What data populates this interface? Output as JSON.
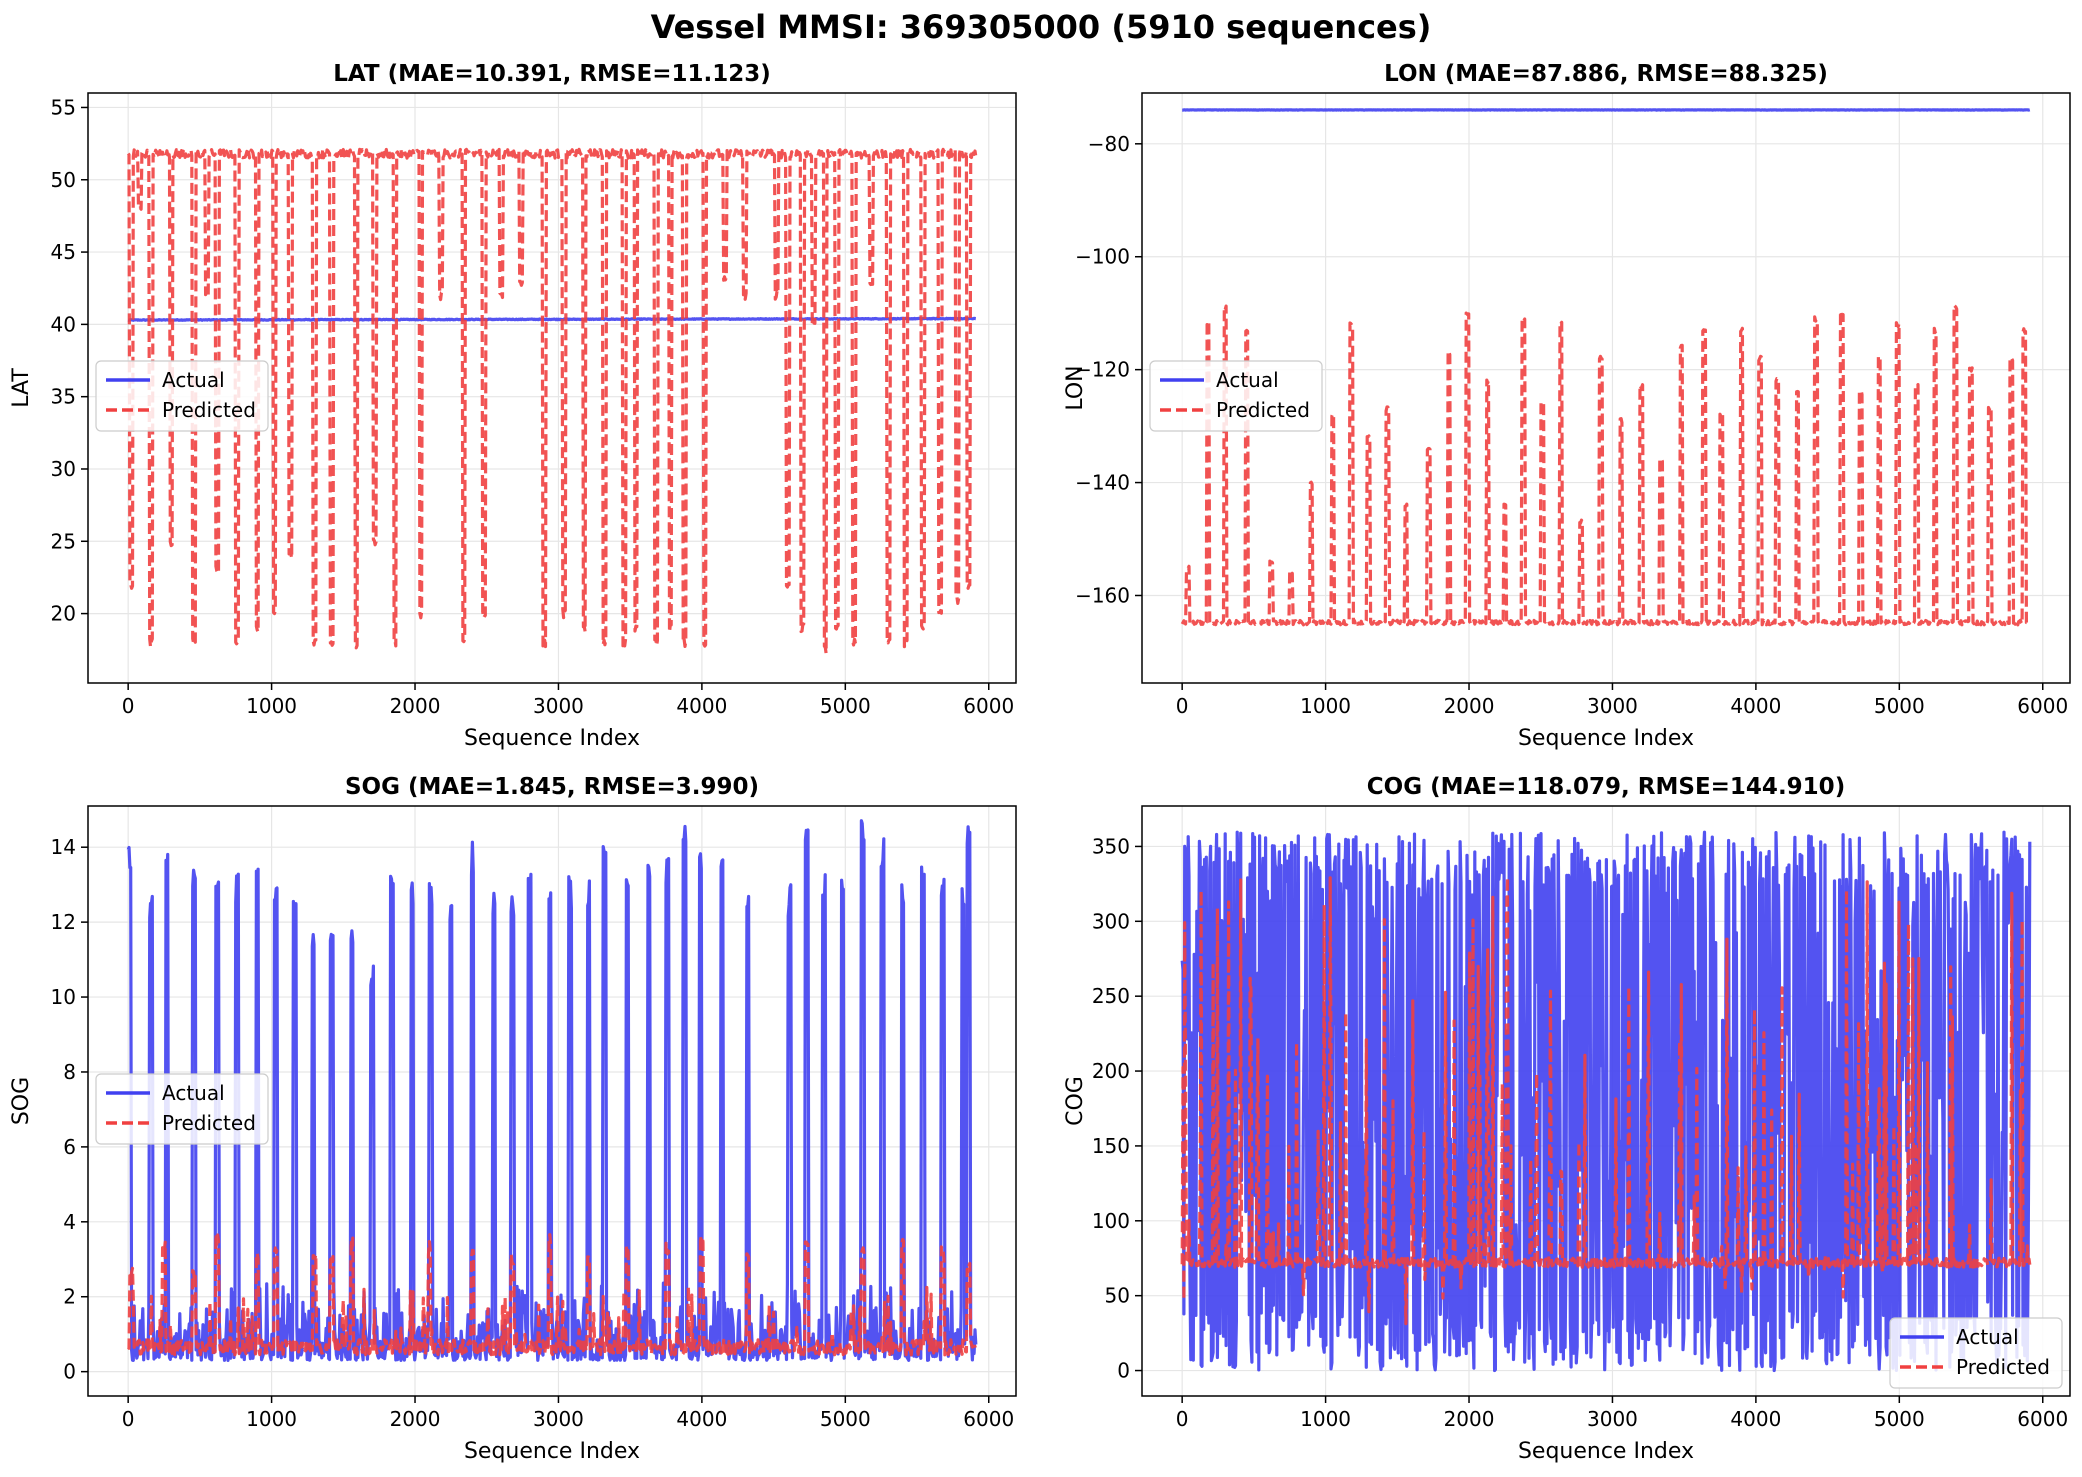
{
  "figure": {
    "suptitle": "Vessel MMSI: 369305000 (5910 sequences)"
  },
  "colors": {
    "actual": "#4040f0",
    "predicted": "#f04040",
    "grid": "#e6e6e6",
    "axis": "#000000"
  },
  "chart_data": [
    {
      "type": "line",
      "title": "LAT (MAE=10.391, RMSE=11.123)",
      "xlabel": "Sequence Index",
      "ylabel": "LAT",
      "xlim": [
        -280,
        6190
      ],
      "ylim": [
        15.2,
        56.0
      ],
      "xticks": [
        0,
        1000,
        2000,
        3000,
        4000,
        5000,
        6000
      ],
      "yticks": [
        20,
        25,
        30,
        35,
        40,
        45,
        50,
        55
      ],
      "legend": {
        "position": "center-left",
        "entries": [
          "Actual",
          "Predicted"
        ]
      },
      "grid": true,
      "series": [
        {
          "name": "Actual",
          "style": "solid",
          "base": 40.3,
          "drift": 0.1,
          "noise": 0.05,
          "peaks": []
        },
        {
          "name": "Predicted",
          "style": "dashed",
          "base": 51.8,
          "noise": 0.6,
          "dips": [
            [
              20,
              22
            ],
            [
              80,
              48
            ],
            [
              160,
              18
            ],
            [
              300,
              25
            ],
            [
              460,
              18
            ],
            [
              550,
              42
            ],
            [
              620,
              23
            ],
            [
              760,
              18
            ],
            [
              900,
              19
            ],
            [
              1020,
              20
            ],
            [
              1130,
              24
            ],
            [
              1300,
              18
            ],
            [
              1420,
              18
            ],
            [
              1590,
              17.5
            ],
            [
              1720,
              25
            ],
            [
              1860,
              18
            ],
            [
              2040,
              20
            ],
            [
              2180,
              42
            ],
            [
              2340,
              18
            ],
            [
              2480,
              20
            ],
            [
              2600,
              42
            ],
            [
              2740,
              43
            ],
            [
              2900,
              18
            ],
            [
              3040,
              20
            ],
            [
              3180,
              19
            ],
            [
              3320,
              18
            ],
            [
              3460,
              18
            ],
            [
              3540,
              19
            ],
            [
              3680,
              18
            ],
            [
              3780,
              19
            ],
            [
              3880,
              18
            ],
            [
              4020,
              18
            ],
            [
              4160,
              43
            ],
            [
              4300,
              42
            ],
            [
              4520,
              42
            ],
            [
              4600,
              22
            ],
            [
              4700,
              19
            ],
            [
              4780,
              40
            ],
            [
              4860,
              17.5
            ],
            [
              4940,
              19
            ],
            [
              5060,
              18
            ],
            [
              5180,
              43
            ],
            [
              5300,
              18
            ],
            [
              5420,
              18
            ],
            [
              5540,
              19
            ],
            [
              5660,
              20
            ],
            [
              5780,
              21
            ],
            [
              5860,
              22
            ]
          ]
        }
      ]
    },
    {
      "type": "line",
      "title": "LON (MAE=87.886, RMSE=88.325)",
      "xlabel": "Sequence Index",
      "ylabel": "LON",
      "xlim": [
        -280,
        6190
      ],
      "ylim": [
        -175.5,
        -71.0
      ],
      "xticks": [
        0,
        1000,
        2000,
        3000,
        4000,
        5000,
        6000
      ],
      "yticks": [
        -160,
        -140,
        -120,
        -100,
        -80
      ],
      "legend": {
        "position": "center-left",
        "entries": [
          "Actual",
          "Predicted"
        ]
      },
      "grid": true,
      "series": [
        {
          "name": "Actual",
          "style": "solid",
          "base": -74.0,
          "drift": 0.0,
          "noise": 0.05,
          "peaks": []
        },
        {
          "name": "Predicted",
          "style": "dashed",
          "base": -164.8,
          "noise": 0.8,
          "spikes": [
            [
              40,
              -155
            ],
            [
              180,
              -112
            ],
            [
              300,
              -109
            ],
            [
              450,
              -113
            ],
            [
              620,
              -154
            ],
            [
              760,
              -156
            ],
            [
              900,
              -140
            ],
            [
              1050,
              -128
            ],
            [
              1180,
              -112
            ],
            [
              1300,
              -132
            ],
            [
              1430,
              -127
            ],
            [
              1560,
              -144
            ],
            [
              1720,
              -134
            ],
            [
              1860,
              -117
            ],
            [
              1990,
              -110
            ],
            [
              2130,
              -122
            ],
            [
              2250,
              -144
            ],
            [
              2380,
              -111
            ],
            [
              2510,
              -126
            ],
            [
              2640,
              -112
            ],
            [
              2780,
              -147
            ],
            [
              2920,
              -118
            ],
            [
              3060,
              -129
            ],
            [
              3200,
              -123
            ],
            [
              3340,
              -136
            ],
            [
              3480,
              -116
            ],
            [
              3640,
              -113
            ],
            [
              3760,
              -128
            ],
            [
              3900,
              -113
            ],
            [
              4030,
              -118
            ],
            [
              4150,
              -122
            ],
            [
              4290,
              -124
            ],
            [
              4420,
              -111
            ],
            [
              4600,
              -110
            ],
            [
              4730,
              -124
            ],
            [
              4860,
              -118
            ],
            [
              4990,
              -112
            ],
            [
              5120,
              -123
            ],
            [
              5250,
              -113
            ],
            [
              5390,
              -109
            ],
            [
              5500,
              -120
            ],
            [
              5630,
              -127
            ],
            [
              5780,
              -118
            ],
            [
              5870,
              -113
            ]
          ]
        }
      ]
    },
    {
      "type": "line",
      "title": "SOG (MAE=1.845, RMSE=3.990)",
      "xlabel": "Sequence Index",
      "ylabel": "SOG",
      "xlim": [
        -280,
        6190
      ],
      "ylim": [
        -0.65,
        15.1
      ],
      "xticks": [
        0,
        1000,
        2000,
        3000,
        4000,
        5000,
        6000
      ],
      "yticks": [
        0,
        2,
        4,
        6,
        8,
        10,
        12,
        14
      ],
      "legend": {
        "position": "center-left",
        "entries": [
          "Actual",
          "Predicted"
        ]
      },
      "grid": true,
      "series": [
        {
          "name": "Actual",
          "style": "solid",
          "base": 0.6,
          "noise": 0.9,
          "peaks": [
            [
              10,
              13.8
            ],
            [
              160,
              12.4
            ],
            [
              270,
              13.6
            ],
            [
              460,
              13.0
            ],
            [
              620,
              12.8
            ],
            [
              760,
              12.9
            ],
            [
              900,
              13.0
            ],
            [
              1030,
              12.5
            ],
            [
              1160,
              12.2
            ],
            [
              1290,
              11.6
            ],
            [
              1420,
              11.5
            ],
            [
              1560,
              11.5
            ],
            [
              1700,
              10.7
            ],
            [
              1840,
              12.9
            ],
            [
              1980,
              12.9
            ],
            [
              2110,
              12.6
            ],
            [
              2250,
              12.4
            ],
            [
              2400,
              13.7
            ],
            [
              2550,
              12.4
            ],
            [
              2680,
              12.5
            ],
            [
              2800,
              13.1
            ],
            [
              2940,
              12.4
            ],
            [
              3080,
              12.8
            ],
            [
              3210,
              12.8
            ],
            [
              3320,
              14.0
            ],
            [
              3480,
              13.2
            ],
            [
              3630,
              13.6
            ],
            [
              3760,
              13.4
            ],
            [
              3880,
              14.3
            ],
            [
              3990,
              13.6
            ],
            [
              4140,
              13.7
            ],
            [
              4320,
              12.8
            ],
            [
              4610,
              12.6
            ],
            [
              4730,
              14.4
            ],
            [
              4850,
              13.0
            ],
            [
              4980,
              13.0
            ],
            [
              5120,
              14.3
            ],
            [
              5260,
              13.8
            ],
            [
              5400,
              12.6
            ],
            [
              5540,
              13.1
            ],
            [
              5680,
              12.9
            ],
            [
              5820,
              12.6
            ],
            [
              5860,
              14.2
            ]
          ]
        },
        {
          "name": "Predicted",
          "style": "dashed",
          "base": 0.65,
          "noise": 0.35,
          "peaks": [
            [
              20,
              2.6
            ],
            [
              250,
              3.3
            ],
            [
              460,
              2.6
            ],
            [
              620,
              3.5
            ],
            [
              900,
              3.0
            ],
            [
              1030,
              3.3
            ],
            [
              1300,
              3.1
            ],
            [
              1420,
              2.9
            ],
            [
              1560,
              3.4
            ],
            [
              2100,
              3.3
            ],
            [
              2400,
              3.1
            ],
            [
              2680,
              3.0
            ],
            [
              2940,
              3.5
            ],
            [
              3210,
              3.2
            ],
            [
              3480,
              3.3
            ],
            [
              3760,
              3.3
            ],
            [
              4000,
              3.5
            ],
            [
              4320,
              3.2
            ],
            [
              4730,
              3.5
            ],
            [
              5120,
              3.3
            ],
            [
              5400,
              3.4
            ],
            [
              5680,
              3.2
            ],
            [
              5860,
              2.8
            ]
          ]
        }
      ]
    },
    {
      "type": "line",
      "title": "COG (MAE=118.079, RMSE=144.910)",
      "xlabel": "Sequence Index",
      "ylabel": "COG",
      "xlim": [
        -280,
        6190
      ],
      "ylim": [
        -17,
        377
      ],
      "xticks": [
        0,
        1000,
        2000,
        3000,
        4000,
        5000,
        6000
      ],
      "yticks": [
        0,
        50,
        100,
        150,
        200,
        250,
        300,
        350
      ],
      "legend": {
        "position": "lower-right",
        "entries": [
          "Actual",
          "Predicted"
        ]
      },
      "grid": true,
      "series": [
        {
          "name": "Actual",
          "style": "solid",
          "low": 0,
          "high": 360,
          "density": 0.55
        },
        {
          "name": "Predicted",
          "style": "dashed",
          "base": 72,
          "low": 30,
          "high": 330,
          "density": 0.12
        }
      ]
    }
  ]
}
